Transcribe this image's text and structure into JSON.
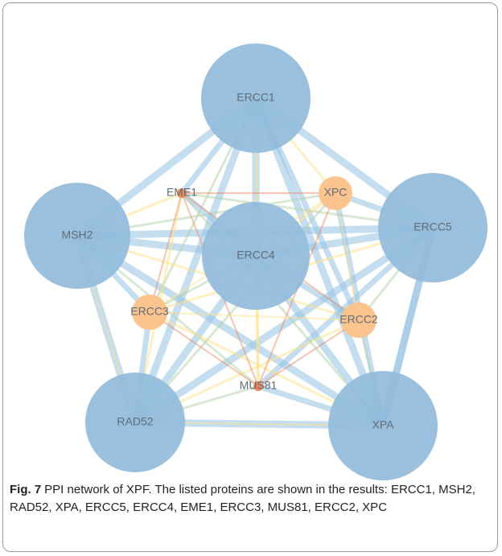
{
  "nodes": [
    {
      "label": "ERCC1"
    },
    {
      "label": "MSH2"
    },
    {
      "label": "ERCC5"
    },
    {
      "label": "ERCC4"
    },
    {
      "label": "RAD52"
    },
    {
      "label": "XPA"
    },
    {
      "label": "EME1"
    },
    {
      "label": "XPC"
    },
    {
      "label": "ERCC3"
    },
    {
      "label": "ERCC2"
    },
    {
      "label": "MUS81"
    }
  ],
  "caption": {
    "label": "Fig. 7",
    "text": "PPI network of XPF. The listed proteins are shown in the results: ERCC1, MSH2, RAD52, XPA, ERCC5, ERCC4, EME1, ERCC3, MUS81, ERCC2, XPC"
  }
}
